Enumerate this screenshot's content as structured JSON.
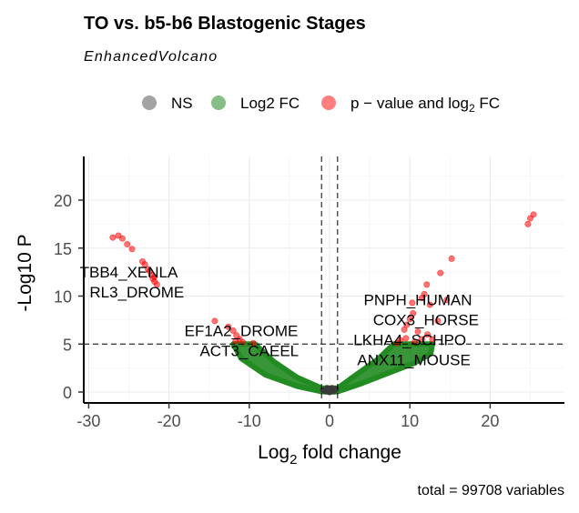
{
  "chart_data": {
    "type": "scatter",
    "title": "TO vs. b5-b6 Blastogenic Stages",
    "subtitle": "EnhancedVolcano",
    "xlabel": "Log2 fold change",
    "ylabel": "-Log10 P",
    "caption": "total = 99708 variables",
    "xlim": [
      -31,
      28
    ],
    "ylim": [
      -1,
      24
    ],
    "xticks": [
      -30,
      -20,
      -10,
      0,
      10,
      20
    ],
    "yticks": [
      0,
      5,
      10,
      15,
      20
    ],
    "thresholds": {
      "log2fc": [
        -1,
        1
      ],
      "neg_log10_p": 5
    },
    "legend": {
      "placement": "top",
      "entries": [
        {
          "label": "NS",
          "color": "#666666"
        },
        {
          "label": "Log2 FC",
          "color": "#228b22"
        },
        {
          "label": "p - value and log2 FC",
          "color": "#ff0000"
        }
      ]
    },
    "series": [
      {
        "name": "NS",
        "color": "#3a3a3a",
        "points": [
          [
            -0.8,
            0.2
          ],
          [
            -0.5,
            0.1
          ],
          [
            0,
            0
          ],
          [
            0.5,
            0.1
          ],
          [
            0.8,
            0.3
          ],
          [
            -0.3,
            0.4
          ],
          [
            0.3,
            0.4
          ]
        ]
      },
      {
        "name": "Log2 FC",
        "color": "#228b22",
        "region": [
          [
            -12,
            5
          ],
          [
            -11,
            3.5
          ],
          [
            -8,
            1.8
          ],
          [
            -4,
            0.6
          ],
          [
            -1,
            0.05
          ],
          [
            0,
            0
          ],
          [
            1,
            0.05
          ],
          [
            4,
            0.9
          ],
          [
            8,
            2.2
          ],
          [
            10.5,
            3
          ],
          [
            12.6,
            4
          ],
          [
            12.8,
            5
          ],
          [
            8,
            5
          ],
          [
            6,
            3.4
          ],
          [
            3,
            1.6
          ],
          [
            1,
            0.4
          ],
          [
            -1,
            0.4
          ],
          [
            -4,
            1.5
          ],
          [
            -7,
            3.2
          ],
          [
            -9.3,
            5
          ]
        ]
      },
      {
        "name": "p - value and log2 FC",
        "color": "#ff0000",
        "points": [
          [
            -27,
            16.1
          ],
          [
            -26.3,
            16.3
          ],
          [
            -25.8,
            16
          ],
          [
            -25.2,
            15.4
          ],
          [
            -24.6,
            14.9
          ],
          [
            -23.3,
            13.6
          ],
          [
            -23,
            13.3
          ],
          [
            -22.6,
            12.8
          ],
          [
            -22.4,
            12.6
          ],
          [
            -22.2,
            12.2
          ],
          [
            -22,
            11.8
          ],
          [
            -21.8,
            12
          ],
          [
            -21.8,
            11.5
          ],
          [
            -21.5,
            11.2
          ],
          [
            -14.3,
            7.4
          ],
          [
            -12.6,
            6.8
          ],
          [
            -12,
            6.4
          ],
          [
            -11.6,
            5.9
          ],
          [
            -11.2,
            5.5
          ],
          [
            -10.8,
            5.2
          ],
          [
            -11.7,
            5.3
          ],
          [
            -9.5,
            5.1
          ],
          [
            24.7,
            17.5
          ],
          [
            25,
            18.1
          ],
          [
            25.4,
            18.5
          ],
          [
            15.2,
            13.9
          ],
          [
            13.8,
            12.4
          ],
          [
            12.1,
            11.2
          ],
          [
            11.8,
            10.2
          ],
          [
            14.6,
            9.6
          ],
          [
            10.3,
            9.3
          ],
          [
            11.5,
            9.8
          ],
          [
            12.5,
            9.1
          ],
          [
            10.4,
            8.2
          ],
          [
            13.5,
            7.4
          ],
          [
            10,
            7.6
          ],
          [
            9.6,
            7
          ],
          [
            9.3,
            6.5
          ],
          [
            11,
            6.3
          ],
          [
            12.2,
            6
          ],
          [
            8.8,
            5.4
          ],
          [
            9.5,
            5.6
          ],
          [
            11.5,
            5.5
          ],
          [
            12.8,
            5.5
          ],
          [
            8.4,
            5.1
          ],
          [
            10.6,
            5.2
          ]
        ]
      }
    ],
    "annotations": [
      {
        "text": "TBB4_XENLA",
        "x": -25,
        "y": 12.5
      },
      {
        "text": "RL3_DROME",
        "x": -24,
        "y": 10.6
      },
      {
        "text": "EF1A2_DROME",
        "x": -11,
        "y": 6.4
      },
      {
        "text": "ACT3_CAEEL",
        "x": -10,
        "y": 5.0
      },
      {
        "text": "PNPH_HUMAN",
        "x": 11,
        "y": 9.6
      },
      {
        "text": "COX3_HORSE",
        "x": 12,
        "y": 8.4
      },
      {
        "text": "LKHA4_SCHPO",
        "x": 10,
        "y": 6.4
      },
      {
        "text": "ANX11_MOUSE",
        "x": 10.5,
        "y": 5.0
      }
    ]
  }
}
